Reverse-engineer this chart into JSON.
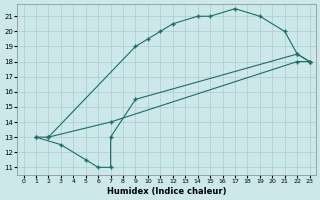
{
  "xlabel": "Humidex (Indice chaleur)",
  "bg_color": "#cce8ea",
  "grid_color": "#aacccc",
  "line_color": "#1a6e64",
  "xlim": [
    -0.5,
    23.5
  ],
  "ylim": [
    10.5,
    21.8
  ],
  "xticks": [
    0,
    1,
    2,
    3,
    4,
    5,
    6,
    7,
    8,
    9,
    10,
    11,
    12,
    13,
    14,
    15,
    16,
    17,
    18,
    19,
    20,
    21,
    22,
    23
  ],
  "yticks": [
    11,
    12,
    13,
    14,
    15,
    16,
    17,
    18,
    19,
    20,
    21
  ],
  "line1_x": [
    1,
    2,
    9,
    10,
    11,
    12,
    14,
    15,
    17,
    19,
    21,
    22,
    23
  ],
  "line1_y": [
    13,
    13,
    19,
    19.5,
    20,
    20.5,
    21,
    21,
    21.5,
    21,
    20,
    18.5,
    18
  ],
  "line2_x": [
    1,
    3,
    5,
    6,
    7,
    7,
    9,
    22,
    23
  ],
  "line2_y": [
    13,
    12.5,
    11.5,
    11,
    11,
    13,
    15.5,
    18.5,
    18
  ],
  "line3_x": [
    2,
    7,
    22,
    23
  ],
  "line3_y": [
    13,
    14,
    18,
    18
  ]
}
